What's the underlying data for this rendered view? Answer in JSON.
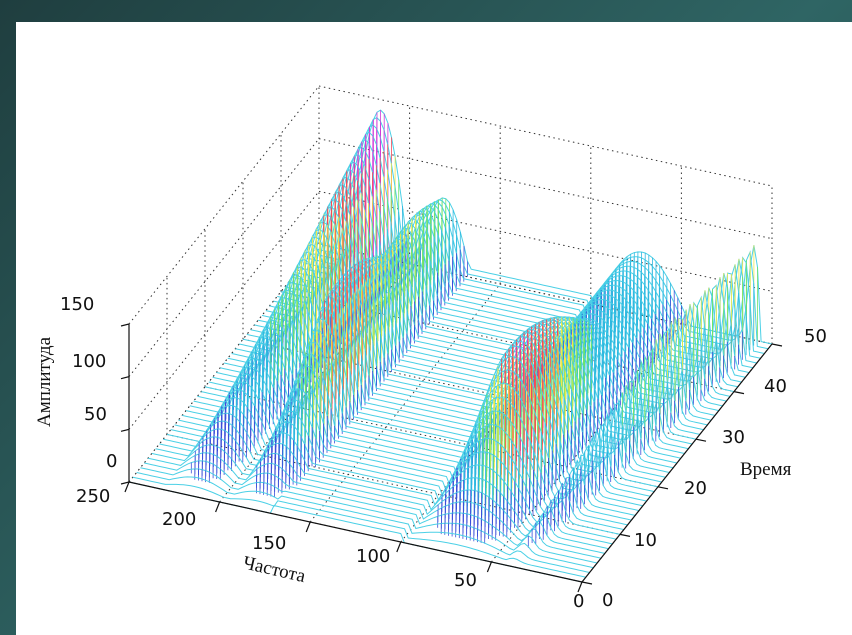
{
  "chart_data": {
    "type": "surface-waterfall",
    "zlabel": "Амплитуда",
    "xlabel": "Частота",
    "ylabel": "Время",
    "x_ticks": [
      "250",
      "200",
      "150",
      "100",
      "50",
      "0"
    ],
    "y_ticks": [
      "0",
      "10",
      "20",
      "30",
      "40",
      "50"
    ],
    "z_ticks": [
      "0",
      "50",
      "100",
      "150"
    ],
    "xlim": [
      0,
      250
    ],
    "ylim": [
      0,
      50
    ],
    "zlim": [
      0,
      150
    ],
    "grid": true,
    "colormap": "hsv (cyan at zero, blue/green/yellow/red/magenta at higher amplitude)",
    "ridges": [
      {
        "freq_range": [
          200,
          230
        ],
        "description": "rising ridge along time",
        "max_amplitude": 140
      },
      {
        "freq_range": [
          165,
          195
        ],
        "description": "curved ridge with dip",
        "max_amplitude": 115
      },
      {
        "freq_range": [
          45,
          95
        ],
        "description": "broad blue hump",
        "max_amplitude": 120
      },
      {
        "freq_range": [
          10,
          40
        ],
        "description": "diagonal ridges",
        "max_amplitude": 90
      }
    ]
  }
}
